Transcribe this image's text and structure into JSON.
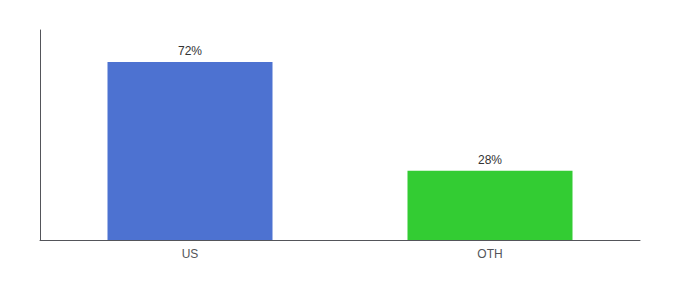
{
  "chart_data": {
    "type": "bar",
    "categories": [
      "US",
      "OTH"
    ],
    "values": [
      72,
      28
    ],
    "value_labels": [
      "72%",
      "28%"
    ],
    "colors": [
      "#4d72d1",
      "#33cc33"
    ],
    "ylim": [
      0,
      85
    ],
    "data_labels": true,
    "tick_labels": "x",
    "grid": false
  }
}
